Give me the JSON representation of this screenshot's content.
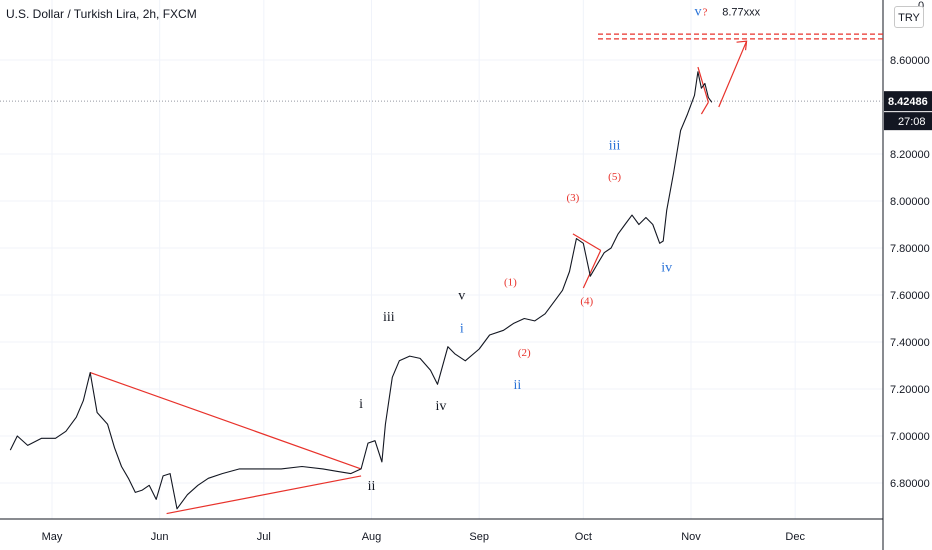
{
  "header": {
    "title": "U.S. Dollar / Turkish Lira, 2h, FXCM",
    "currency_badge": "TRY",
    "top_partial": "0"
  },
  "colors": {
    "price": "#131722",
    "annotation_red": "#e8322b",
    "wave_blue": "#2a73d8",
    "wave_black": "#131722",
    "price_label_bg": "#131722",
    "grid": "#f0f3fa"
  },
  "chart_data": {
    "type": "line",
    "symbol": "USDTRY",
    "timeframe": "2h",
    "source": "FXCM",
    "x_tick_labels": [
      "May",
      "Jun",
      "Jul",
      "Aug",
      "Sep",
      "Oct",
      "Nov",
      "Dec"
    ],
    "x_ticks": [
      "2021-05-01",
      "2021-06-01",
      "2021-07-01",
      "2021-08-01",
      "2021-09-01",
      "2021-10-01",
      "2021-11-01",
      "2021-12-01"
    ],
    "xlim": [
      "2021-04-19",
      "2021-12-24"
    ],
    "y_tick_labels": [
      "6.80000",
      "7.00000",
      "7.20000",
      "7.40000",
      "7.60000",
      "7.80000",
      "8.00000",
      "8.20000",
      "8.60000"
    ],
    "y_ticks": [
      6.8,
      7.0,
      7.2,
      7.4,
      7.6,
      7.8,
      8.0,
      8.2,
      8.6
    ],
    "ylim": [
      6.63,
      8.83
    ],
    "current_price": "8.42486",
    "countdown": "27:08",
    "series": [
      {
        "values": [
          [
            "2021-04-19",
            6.94
          ],
          [
            "2021-04-21",
            7.0
          ],
          [
            "2021-04-24",
            6.96
          ],
          [
            "2021-04-28",
            6.99
          ],
          [
            "2021-05-02",
            6.99
          ],
          [
            "2021-05-05",
            7.02
          ],
          [
            "2021-05-08",
            7.08
          ],
          [
            "2021-05-10",
            7.15
          ],
          [
            "2021-05-12",
            7.27
          ],
          [
            "2021-05-14",
            7.1
          ],
          [
            "2021-05-17",
            7.05
          ],
          [
            "2021-05-19",
            6.95
          ],
          [
            "2021-05-21",
            6.87
          ],
          [
            "2021-05-23",
            6.82
          ],
          [
            "2021-05-25",
            6.76
          ],
          [
            "2021-05-27",
            6.77
          ],
          [
            "2021-05-29",
            6.79
          ],
          [
            "2021-05-31",
            6.73
          ],
          [
            "2021-06-02",
            6.83
          ],
          [
            "2021-06-04",
            6.84
          ],
          [
            "2021-06-06",
            6.69
          ],
          [
            "2021-06-09",
            6.75
          ],
          [
            "2021-06-12",
            6.79
          ],
          [
            "2021-06-15",
            6.82
          ],
          [
            "2021-06-19",
            6.84
          ],
          [
            "2021-06-24",
            6.86
          ],
          [
            "2021-06-30",
            6.86
          ],
          [
            "2021-07-06",
            6.86
          ],
          [
            "2021-07-12",
            6.87
          ],
          [
            "2021-07-18",
            6.86
          ],
          [
            "2021-07-22",
            6.85
          ],
          [
            "2021-07-26",
            6.84
          ],
          [
            "2021-07-29",
            6.86
          ],
          [
            "2021-07-31",
            6.97
          ],
          [
            "2021-08-02",
            6.98
          ],
          [
            "2021-08-04",
            6.89
          ],
          [
            "2021-08-05",
            7.05
          ],
          [
            "2021-08-07",
            7.25
          ],
          [
            "2021-08-09",
            7.32
          ],
          [
            "2021-08-12",
            7.34
          ],
          [
            "2021-08-15",
            7.33
          ],
          [
            "2021-08-18",
            7.28
          ],
          [
            "2021-08-20",
            7.22
          ],
          [
            "2021-08-23",
            7.38
          ],
          [
            "2021-08-25",
            7.35
          ],
          [
            "2021-08-28",
            7.32
          ],
          [
            "2021-09-01",
            7.37
          ],
          [
            "2021-09-04",
            7.43
          ],
          [
            "2021-09-08",
            7.45
          ],
          [
            "2021-09-11",
            7.48
          ],
          [
            "2021-09-14",
            7.5
          ],
          [
            "2021-09-17",
            7.49
          ],
          [
            "2021-09-20",
            7.52
          ],
          [
            "2021-09-23",
            7.58
          ],
          [
            "2021-09-25",
            7.62
          ],
          [
            "2021-09-27",
            7.7
          ],
          [
            "2021-09-29",
            7.84
          ],
          [
            "2021-10-01",
            7.82
          ],
          [
            "2021-10-03",
            7.68
          ],
          [
            "2021-10-05",
            7.73
          ],
          [
            "2021-10-07",
            7.78
          ],
          [
            "2021-10-09",
            7.8
          ],
          [
            "2021-10-11",
            7.86
          ],
          [
            "2021-10-13",
            7.9
          ],
          [
            "2021-10-15",
            7.94
          ],
          [
            "2021-10-17",
            7.9
          ],
          [
            "2021-10-19",
            7.93
          ],
          [
            "2021-10-21",
            7.9
          ],
          [
            "2021-10-23",
            7.82
          ],
          [
            "2021-10-24",
            7.83
          ],
          [
            "2021-10-25",
            7.96
          ],
          [
            "2021-10-27",
            8.12
          ],
          [
            "2021-10-29",
            8.3
          ],
          [
            "2021-10-31",
            8.37
          ],
          [
            "2021-11-02",
            8.45
          ],
          [
            "2021-11-03",
            8.55
          ],
          [
            "2021-11-04",
            8.48
          ],
          [
            "2021-11-05",
            8.5
          ],
          [
            "2021-11-06",
            8.44
          ],
          [
            "2021-11-07",
            8.42
          ]
        ]
      }
    ],
    "annotations": {
      "wave_labels": [
        {
          "text": "i",
          "color": "black",
          "date": "2021-07-29",
          "price": 7.12
        },
        {
          "text": "ii",
          "color": "black",
          "date": "2021-08-01",
          "price": 6.77
        },
        {
          "text": "iii",
          "color": "black",
          "date": "2021-08-06",
          "price": 7.49
        },
        {
          "text": "iv",
          "color": "black",
          "date": "2021-08-21",
          "price": 7.11
        },
        {
          "text": "v",
          "color": "black",
          "date": "2021-08-27",
          "price": 7.58
        },
        {
          "text": "i",
          "color": "blue",
          "date": "2021-08-27",
          "price": 7.44
        },
        {
          "text": "ii",
          "color": "blue",
          "date": "2021-09-12",
          "price": 7.2
        },
        {
          "text": "iii",
          "color": "blue",
          "date": "2021-10-10",
          "price": 8.22
        },
        {
          "text": "iv",
          "color": "blue",
          "date": "2021-10-25",
          "price": 7.7
        },
        {
          "text": "v",
          "color": "blue",
          "date": "2021-11-03",
          "price": 8.79
        },
        {
          "text": "(1)",
          "color": "red",
          "date": "2021-09-10",
          "price": 7.64
        },
        {
          "text": "(2)",
          "color": "red",
          "date": "2021-09-14",
          "price": 7.34
        },
        {
          "text": "(3)",
          "color": "red",
          "date": "2021-09-28",
          "price": 8.0
        },
        {
          "text": "(4)",
          "color": "red",
          "date": "2021-10-02",
          "price": 7.56
        },
        {
          "text": "(5)",
          "color": "red",
          "date": "2021-10-10",
          "price": 8.09
        },
        {
          "text": "?",
          "color": "red",
          "date": "2021-11-05",
          "price": 8.79
        },
        {
          "text": "8.77xxx",
          "color": "black",
          "date": "2021-11-10",
          "price": 8.79
        }
      ],
      "target_levels": [
        8.71,
        8.69
      ]
    }
  }
}
